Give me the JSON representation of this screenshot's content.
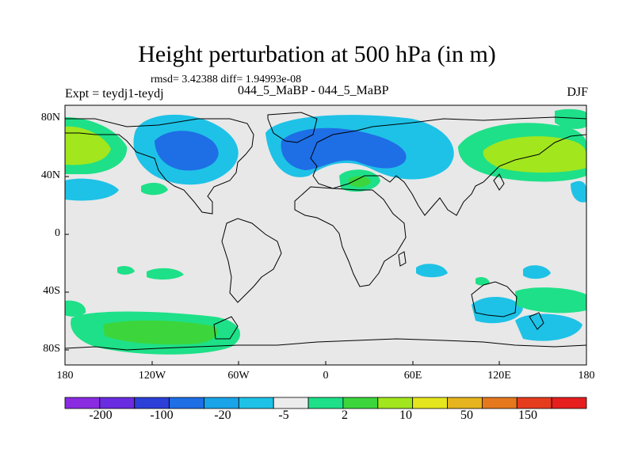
{
  "title": "Height perturbation at 500 hPa (in m)",
  "stats": "rmsd= 3.42388 diff= 1.94993e-08",
  "expt": "Expt = teydj1-teydj",
  "cases": "044_5_MaBP - 044_5_MaBP",
  "season": "DJF",
  "lat_ticks": [
    "80N",
    "40N",
    "0",
    "40S",
    "80S"
  ],
  "lon_ticks": [
    "180",
    "120W",
    "60W",
    "0",
    "60E",
    "120E",
    "180"
  ],
  "colorbar": {
    "labels": [
      "-200",
      "-100",
      "-20",
      "-5",
      "2",
      "10",
      "50",
      "150"
    ],
    "colors": [
      "#8a2be2",
      "#6a2ce0",
      "#2c3fd8",
      "#1e6ee6",
      "#19a3e8",
      "#1ec2e6",
      "#ececec",
      "#1ee088",
      "#3cd63c",
      "#a2e61e",
      "#e6e61e",
      "#e6b41e",
      "#e6781e",
      "#e63c1e",
      "#e61e1e"
    ]
  },
  "colors": {
    "background": "#e8e8e8",
    "coast": "#000000"
  }
}
